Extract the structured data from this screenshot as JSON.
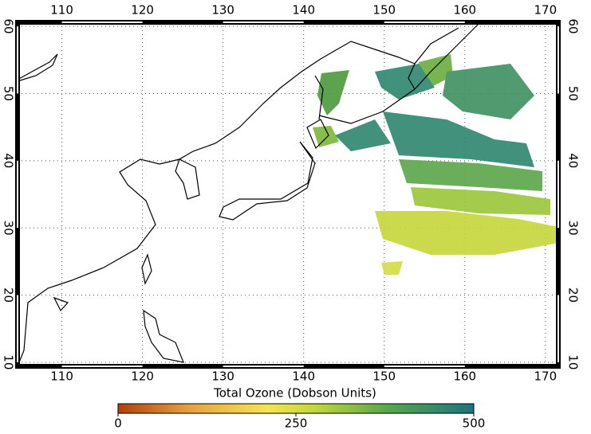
{
  "map": {
    "lon_ticks": [
      110,
      120,
      130,
      140,
      150,
      160,
      170
    ],
    "lat_ticks": [
      10,
      20,
      30,
      40,
      50,
      60
    ],
    "xlim": [
      104.5,
      171.6
    ],
    "ylim": [
      9.4,
      60.6
    ]
  },
  "colorbar": {
    "title": "Total Ozone (Dobson Units)",
    "ticks": [
      0,
      250,
      500
    ],
    "range": [
      0,
      500
    ]
  }
}
